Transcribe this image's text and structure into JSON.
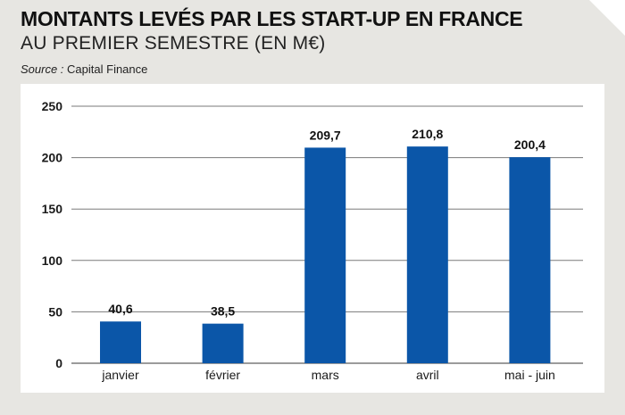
{
  "header": {
    "title": "MONTANTS LEVÉS PAR LES START-UP EN FRANCE",
    "subtitle": "AU PREMIER SEMESTRE (EN M€)",
    "source_label": "Source :",
    "source_value": "Capital Finance"
  },
  "colors": {
    "bar": "#0b56a8",
    "grid": "#7a7a7a",
    "panel": "#ffffff",
    "background": "#e7e6e2"
  },
  "chart_data": {
    "type": "bar",
    "categories": [
      "janvier",
      "février",
      "mars",
      "avril",
      "mai - juin"
    ],
    "values": [
      40.6,
      38.5,
      209.7,
      210.8,
      200.4
    ],
    "value_labels": [
      "40,6",
      "38,5",
      "209,7",
      "210,8",
      "200,4"
    ],
    "yticks": [
      0,
      50,
      100,
      150,
      200,
      250
    ],
    "ylim": [
      0,
      250
    ],
    "grid": true,
    "legend": "none",
    "xlabel": "",
    "ylabel": ""
  }
}
